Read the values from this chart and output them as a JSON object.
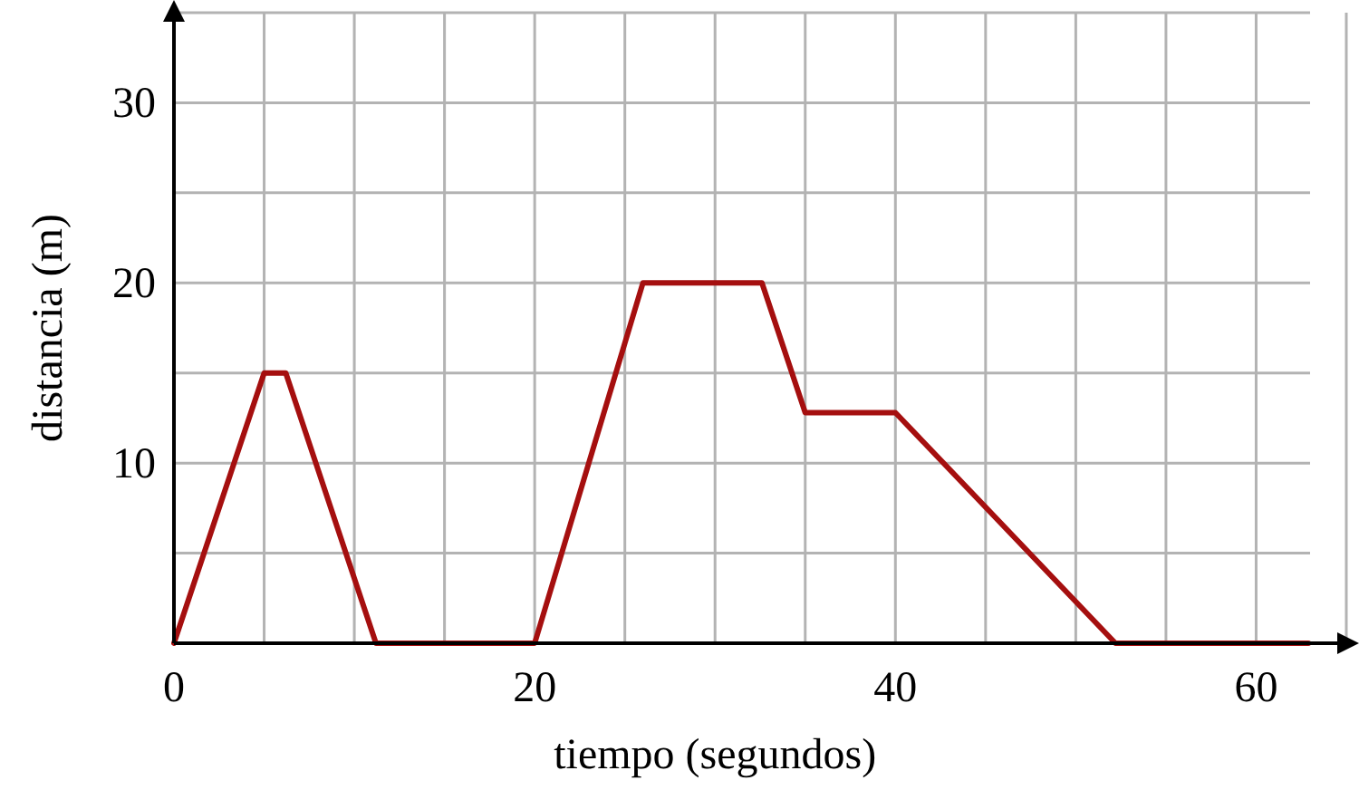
{
  "chart_data": {
    "type": "line",
    "xlabel": "tiempo (segundos)",
    "ylabel": "distancia (m)",
    "x": [
      0,
      5,
      6.2,
      11.2,
      20,
      26,
      32.6,
      35,
      40,
      52.2,
      62.9
    ],
    "series": [
      {
        "color": "#a50f0f",
        "values": [
          0,
          15,
          15,
          0,
          0,
          20,
          20,
          12.8,
          12.8,
          0,
          0
        ]
      }
    ],
    "xlim": [
      0,
      65
    ],
    "ylim": [
      0,
      35
    ],
    "xticks": [
      0,
      {
        "value": 5,
        "label": null
      },
      {
        "value": 10,
        "label": null
      },
      {
        "value": 15,
        "label": null
      },
      20,
      {
        "value": 25,
        "label": null
      },
      {
        "value": 30,
        "label": null
      },
      {
        "value": 35,
        "label": null
      },
      40,
      {
        "value": 45,
        "label": null
      },
      {
        "value": 50,
        "label": null
      },
      {
        "value": 55,
        "label": null
      },
      60,
      {
        "value": 65,
        "label": null
      }
    ],
    "yticks": [
      {
        "value": 5,
        "label": null
      },
      10,
      {
        "value": 15,
        "label": null
      },
      20,
      {
        "value": 25,
        "label": null
      },
      30,
      {
        "value": 35,
        "label": null
      }
    ],
    "grid": true,
    "marker": "none",
    "line_style": "solid"
  }
}
